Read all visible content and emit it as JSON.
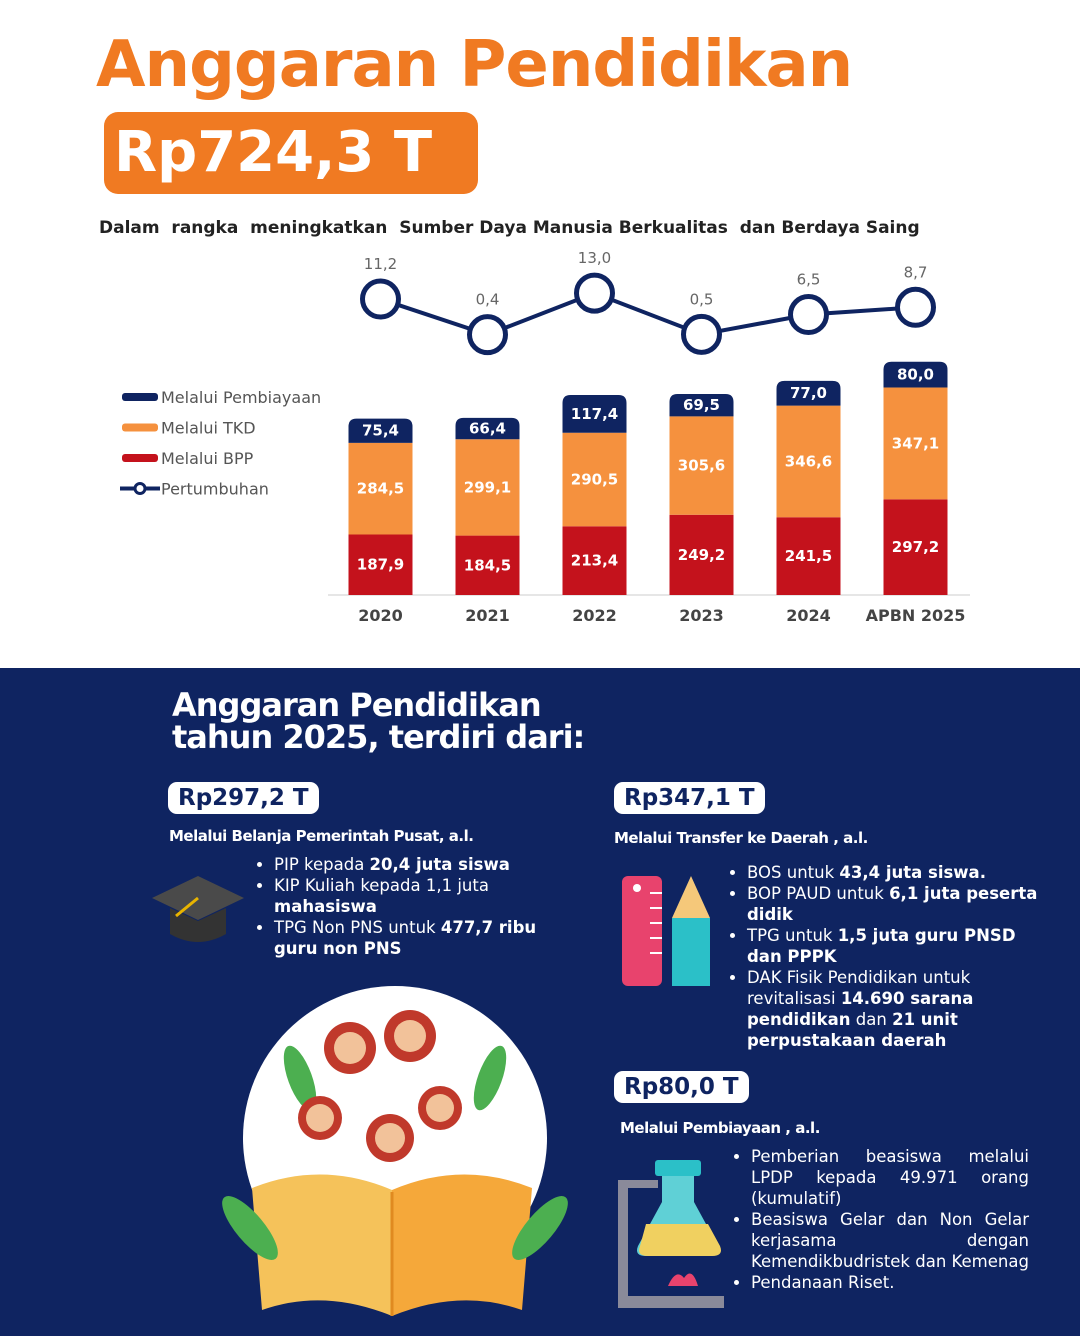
{
  "header": {
    "title": "Anggaran Pendidikan",
    "total": "Rp724,3 T",
    "subtitle": "Dalam  rangka  meningkatkan  Sumber Daya Manusia Berkualitas  dan Berdaya Saing"
  },
  "chart_data": {
    "type": "stacked-bar-line",
    "categories": [
      "2020",
      "2021",
      "2022",
      "2023",
      "2024",
      "APBN 2025"
    ],
    "series": [
      {
        "name": "Melalui Pembiayaan",
        "color": "#0f2461",
        "values": [
          75.4,
          66.4,
          117.4,
          69.5,
          77.0,
          80.0
        ],
        "value_labels": [
          "75,4",
          "66,4",
          "117,4",
          "69,5",
          "77,0",
          "80,0"
        ]
      },
      {
        "name": "Melalui TKD",
        "color": "#f5913e",
        "values": [
          284.5,
          299.1,
          290.5,
          305.6,
          346.6,
          347.1
        ],
        "value_labels": [
          "284,5",
          "299,1",
          "290,5",
          "305,6",
          "346,6",
          "347,1"
        ]
      },
      {
        "name": "Melalui BPP",
        "color": "#c4121c",
        "values": [
          187.9,
          184.5,
          213.4,
          249.2,
          241.5,
          297.2
        ],
        "value_labels": [
          "187,9",
          "184,5",
          "213,4",
          "249,2",
          "241,5",
          "297,2"
        ]
      },
      {
        "name": "Pertumbuhan",
        "type": "line",
        "color": "#0f2461",
        "values": [
          11.2,
          0.4,
          13.0,
          0.5,
          6.5,
          8.7
        ],
        "value_labels": [
          "11,2",
          "0,4",
          "13,0",
          "0,5",
          "6,5",
          "8,7"
        ]
      }
    ]
  },
  "breakdown": {
    "heading": [
      "Anggaran Pendidikan",
      "tahun 2025, terdiri dari:"
    ],
    "sections": [
      {
        "amount": "Rp297,2 T",
        "label": "Melalui Belanja Pemerintah Pusat, a.l.",
        "bullets": [
          [
            "PIP kepada ",
            "20,4 juta siswa"
          ],
          [
            "KIP Kuliah kepada 1,1 juta ",
            "mahasiswa"
          ],
          [
            "TPG Non PNS untuk ",
            "477,7 ribu guru non PNS"
          ]
        ]
      },
      {
        "amount": "Rp347,1 T",
        "label": "Melalui Transfer ke Daerah , a.l.",
        "bullets": [
          [
            "BOS untuk ",
            "43,4 juta siswa."
          ],
          [
            "BOP PAUD untuk ",
            "6,1 juta peserta didik"
          ],
          [
            "TPG untuk ",
            "1,5 juta guru PNSD dan PPPK"
          ],
          [
            "DAK Fisik Pendidikan untuk revitalisasi ",
            "14.690 sarana pendidikan",
            " dan ",
            "21 unit perpustakaan daerah"
          ]
        ]
      },
      {
        "amount": "Rp80,0 T",
        "label": "Melalui Pembiayaan , a.l.",
        "bullets": [
          [
            "Pemberian beasiswa melalui LPDP kepada 49.971 orang (kumulatif)"
          ],
          [
            "Beasiswa Gelar dan Non Gelar kerjasama dengan Kemendikbudristek dan Kemenag"
          ],
          [
            "Pendanaan Riset."
          ]
        ]
      }
    ]
  }
}
